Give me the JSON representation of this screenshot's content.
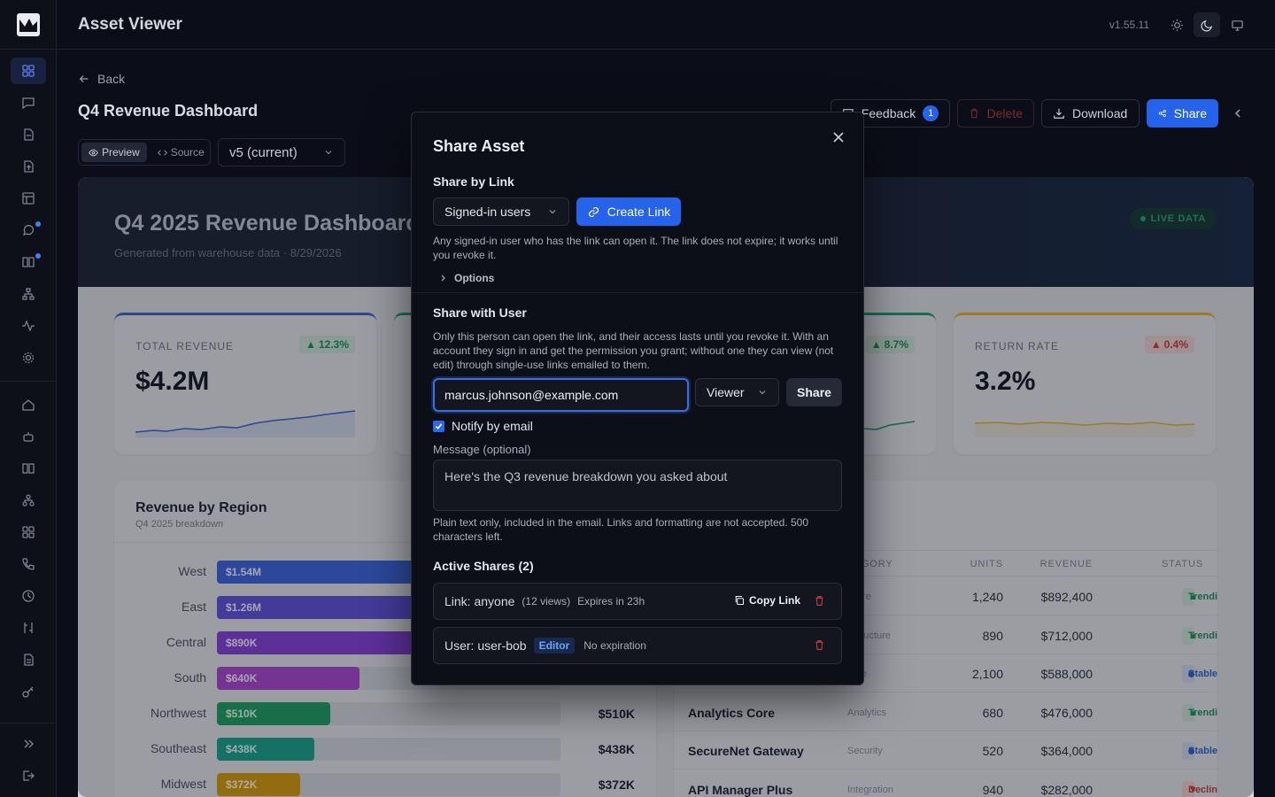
{
  "app": {
    "title": "Asset Viewer",
    "version": "v1.55.11"
  },
  "page": {
    "back_label": "Back",
    "title": "Q4 Revenue Dashboard",
    "view_modes": [
      "Preview",
      "Source"
    ],
    "version_select": "v5 (current)",
    "actions": {
      "feedback": "Feedback",
      "feedback_count": "1",
      "delete": "Delete",
      "download": "Download",
      "share": "Share"
    }
  },
  "dashboard": {
    "title": "Q4 2025 Revenue Dashboard",
    "subtitle": "Generated from warehouse data · 8/29/2026",
    "live_badge": "LIVE DATA",
    "kpis": [
      {
        "label": "TOTAL REVENUE",
        "value": "$4.2M",
        "change": "12.3%",
        "direction": "up",
        "color": "#3b5fc8"
      },
      {
        "label": "",
        "value": "",
        "change": "8.7%",
        "direction": "up",
        "color": "#1d9a63"
      },
      {
        "label": "RETURN RATE",
        "value": "3.2%",
        "change": "0.4%",
        "direction": "down",
        "color": "#e0a92c"
      }
    ],
    "region_panel": {
      "title": "Revenue by Region",
      "subtitle": "Q4 2025 breakdown",
      "rows": [
        {
          "region": "West",
          "label": "$1.54M",
          "value": 1.54,
          "color": "#3d62d6"
        },
        {
          "region": "East",
          "label": "$1.26M",
          "value": 1.26,
          "color": "#5b4fd4"
        },
        {
          "region": "Central",
          "label": "$890K",
          "value": 0.89,
          "color": "#7f3fd2"
        },
        {
          "region": "South",
          "label": "$640K",
          "value": 0.64,
          "color": "#a446c8"
        },
        {
          "region": "Northwest",
          "label": "$510K",
          "value": 0.51,
          "color": "#1f9a5e"
        },
        {
          "region": "Southeast",
          "label": "$438K",
          "value": 0.438,
          "color": "#1a9c86"
        },
        {
          "region": "Midwest",
          "label": "$372K",
          "value": 0.372,
          "color": "#d0950f"
        }
      ],
      "max": 1.54
    },
    "products": {
      "headers": [
        "TEGORY",
        "UNITS",
        "REVENUE",
        "STATUS"
      ],
      "rows": [
        {
          "name": "",
          "category": "tware",
          "units": "1,240",
          "revenue": "$892,400",
          "status": "Trending",
          "kind": "trending"
        },
        {
          "name": "",
          "category": "astructure",
          "units": "890",
          "revenue": "$712,000",
          "status": "Trending",
          "kind": "trending"
        },
        {
          "name": "",
          "category": "rage",
          "units": "2,100",
          "revenue": "$588,000",
          "status": "Stable",
          "kind": "stable"
        },
        {
          "name": "Analytics Core",
          "category": "Analytics",
          "units": "680",
          "revenue": "$476,000",
          "status": "Trending",
          "kind": "trending"
        },
        {
          "name": "SecureNet Gateway",
          "category": "Security",
          "units": "520",
          "revenue": "$364,000",
          "status": "Stable",
          "kind": "stable"
        },
        {
          "name": "API Manager Plus",
          "category": "Integration",
          "units": "940",
          "revenue": "$282,000",
          "status": "Declining",
          "kind": "declining"
        }
      ]
    }
  },
  "modal": {
    "title": "Share Asset",
    "link_section": {
      "heading": "Share by Link",
      "audience": "Signed-in users",
      "create_label": "Create Link",
      "description": "Any signed-in user who has the link can open it. The link does not expire; it works until you revoke it.",
      "options_label": "Options"
    },
    "user_section": {
      "heading": "Share with User",
      "description": "Only this person can open the link, and their access lasts until you revoke it. With an account they sign in and get the permission you grant; without one they can view (not edit) through single-use links emailed to them.",
      "email": "marcus.johnson@example.com",
      "role": "Viewer",
      "share_label": "Share",
      "notify_label": "Notify by email",
      "message_label": "Message (optional)",
      "message": "Here's the Q3 revenue breakdown you asked about",
      "hint": "Plain text only, included in the email. Links and formatting are not accepted. 500 characters left."
    },
    "active": {
      "heading": "Active Shares (2)",
      "link_share": {
        "label": "Link: anyone",
        "views": "(12 views)",
        "expires": "Expires in 23h",
        "copy_label": "Copy Link"
      },
      "user_share": {
        "label": "User: user-bob",
        "role": "Editor",
        "expires": "No expiration"
      }
    }
  }
}
